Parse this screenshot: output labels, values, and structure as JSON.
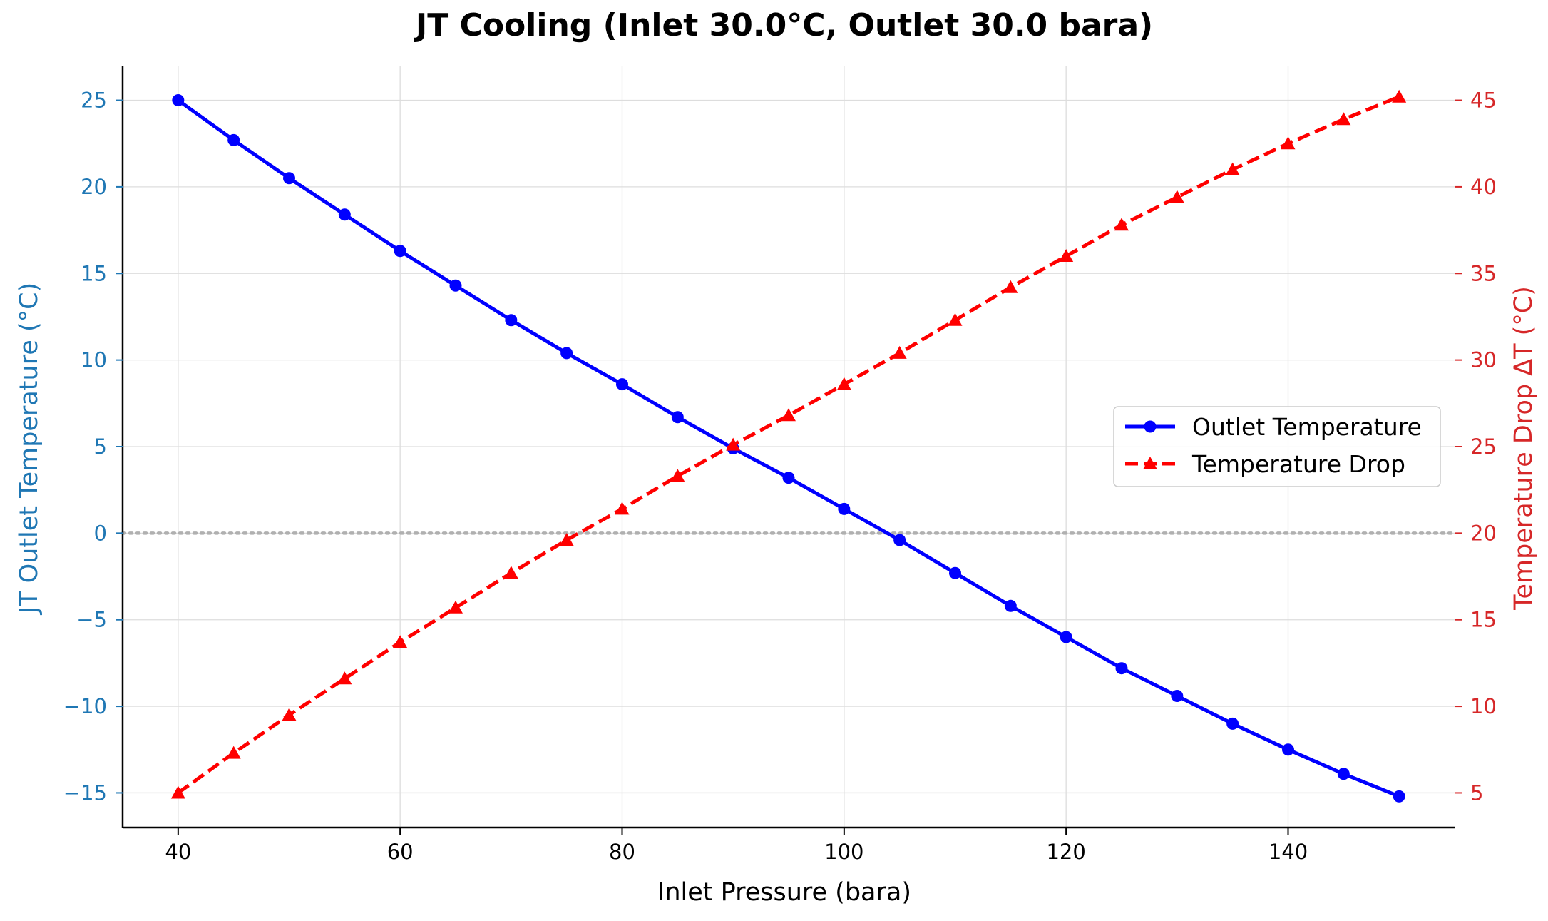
{
  "chart_data": {
    "type": "line",
    "title": "JT Cooling (Inlet 30.0°C, Outlet 30.0 bara)",
    "xlabel": "Inlet Pressure (bara)",
    "ylabel_left": "JT Outlet Temperature (°C)",
    "ylabel_right": "Temperature Drop ΔT (°C)",
    "xlim": [
      35,
      155
    ],
    "ylim_left": [
      -17,
      27
    ],
    "ylim_right": [
      3,
      47
    ],
    "x_ticks": [
      40,
      60,
      80,
      100,
      120,
      140
    ],
    "y_ticks_left": [
      -15,
      -10,
      -5,
      0,
      5,
      10,
      15,
      20,
      25
    ],
    "y_ticks_right": [
      5,
      10,
      15,
      20,
      25,
      30,
      35,
      40,
      45
    ],
    "grid": true,
    "zero_reference_line": 0,
    "legend_position": "center-right",
    "x": [
      40,
      45,
      50,
      55,
      60,
      65,
      70,
      75,
      80,
      85,
      90,
      95,
      100,
      105,
      110,
      115,
      120,
      125,
      130,
      135,
      140,
      145,
      150
    ],
    "series": [
      {
        "name": "Outlet Temperature",
        "axis": "left",
        "color": "#0000ff",
        "line_style": "solid",
        "marker": "circle",
        "values": [
          25.0,
          22.7,
          20.5,
          18.4,
          16.3,
          14.3,
          12.3,
          10.4,
          8.6,
          6.7,
          4.9,
          3.2,
          1.4,
          -0.4,
          -2.3,
          -4.2,
          -6.0,
          -7.8,
          -9.4,
          -11.0,
          -12.5,
          -13.9,
          -15.2
        ]
      },
      {
        "name": "Temperature Drop",
        "axis": "right",
        "color": "#ff0000",
        "line_style": "dashed",
        "marker": "triangle",
        "values": [
          5.0,
          7.3,
          9.5,
          11.6,
          13.7,
          15.7,
          17.7,
          19.6,
          21.4,
          23.3,
          25.1,
          26.8,
          28.6,
          30.4,
          32.3,
          34.2,
          36.0,
          37.8,
          39.4,
          41.0,
          42.5,
          43.9,
          45.2
        ]
      }
    ],
    "colors": {
      "left_axis": "#1f77b4",
      "right_axis": "#d62728",
      "zero_line": "#b0b0b0"
    }
  }
}
